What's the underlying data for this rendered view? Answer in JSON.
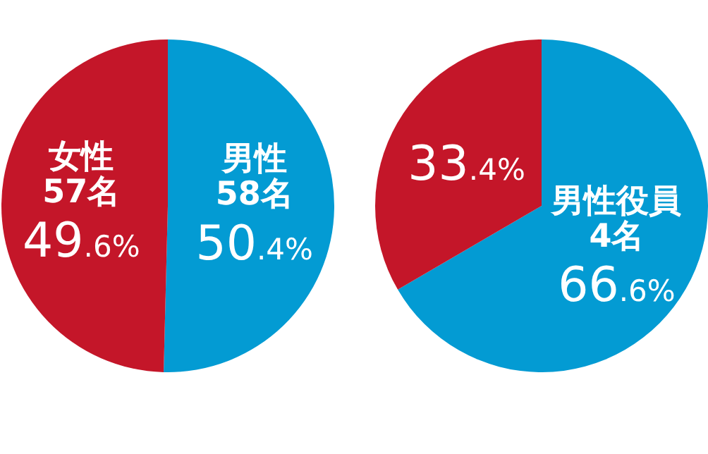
{
  "chart_data": [
    {
      "type": "pie",
      "categories": [
        "男性 58名",
        "女性 57名"
      ],
      "values": [
        50.4,
        49.6
      ],
      "colors": [
        "#039bd3",
        "#c41629"
      ],
      "value_labels": [
        "50.4%",
        "49.6%"
      ],
      "legend": false
    },
    {
      "type": "pie",
      "categories": [
        "男性役員 4名",
        null
      ],
      "values": [
        66.6,
        33.4
      ],
      "colors": [
        "#039bd3",
        "#c41629"
      ],
      "value_labels": [
        "66.6%",
        "33.4%"
      ],
      "legend": false
    }
  ]
}
